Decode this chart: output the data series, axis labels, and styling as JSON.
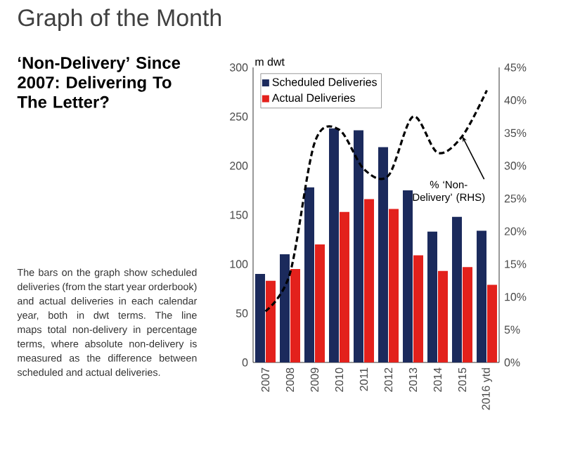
{
  "chart_data": {
    "type": "bar",
    "title": "Graph of the Month",
    "subtitle": "‘Non-Delivery’ Since 2007: Delivering To The Letter?",
    "ylabel": "m dwt",
    "categories": [
      "2007",
      "2008",
      "2009",
      "2010",
      "2011",
      "2012",
      "2013",
      "2014",
      "2015",
      "2016 ytd"
    ],
    "series": [
      {
        "name": "Scheduled Deliveries",
        "color": "#1b2a5c",
        "values": [
          90,
          110,
          178,
          238,
          236,
          219,
          175,
          133,
          148,
          134
        ]
      },
      {
        "name": "Actual Deliveries",
        "color": "#e3211c",
        "values": [
          83,
          95,
          120,
          153,
          166,
          156,
          109,
          93,
          97,
          79
        ]
      },
      {
        "type": "line",
        "axis": "y2",
        "color": "#000000",
        "line_style": "dashed",
        "values": [
          7.8,
          13.6,
          33.5,
          35.5,
          29.5,
          28.5,
          37.5,
          32,
          34.5,
          41.5
        ]
      }
    ],
    "ylim": [
      0,
      300
    ],
    "yticks": [
      0,
      50,
      100,
      150,
      200,
      250,
      300
    ],
    "y2lim": [
      0,
      45
    ],
    "y2ticks": [
      {
        "value": 0,
        "label": "0%"
      },
      {
        "value": 5,
        "label": "5%"
      },
      {
        "value": 10,
        "label": "10%"
      },
      {
        "value": 15,
        "label": "15%"
      },
      {
        "value": 20,
        "label": "20%"
      },
      {
        "value": 25,
        "label": "25%"
      },
      {
        "value": 30,
        "label": "30%"
      },
      {
        "value": 35,
        "label": "35%"
      },
      {
        "value": 40,
        "label": "40%"
      },
      {
        "value": 45,
        "label": "45%"
      }
    ],
    "legend": "top left",
    "grid": false,
    "annotations": [
      "% ‘Non-Delivery’ (RHS)",
      "The bars on the graph show scheduled deliveries (from the start year orderbook) and actual deliveries in each calendar year, both in dwt terms. The line maps total non-delivery in percentage terms, where absolute non-delivery is measured as the difference between scheduled and actual deliveries."
    ]
  }
}
